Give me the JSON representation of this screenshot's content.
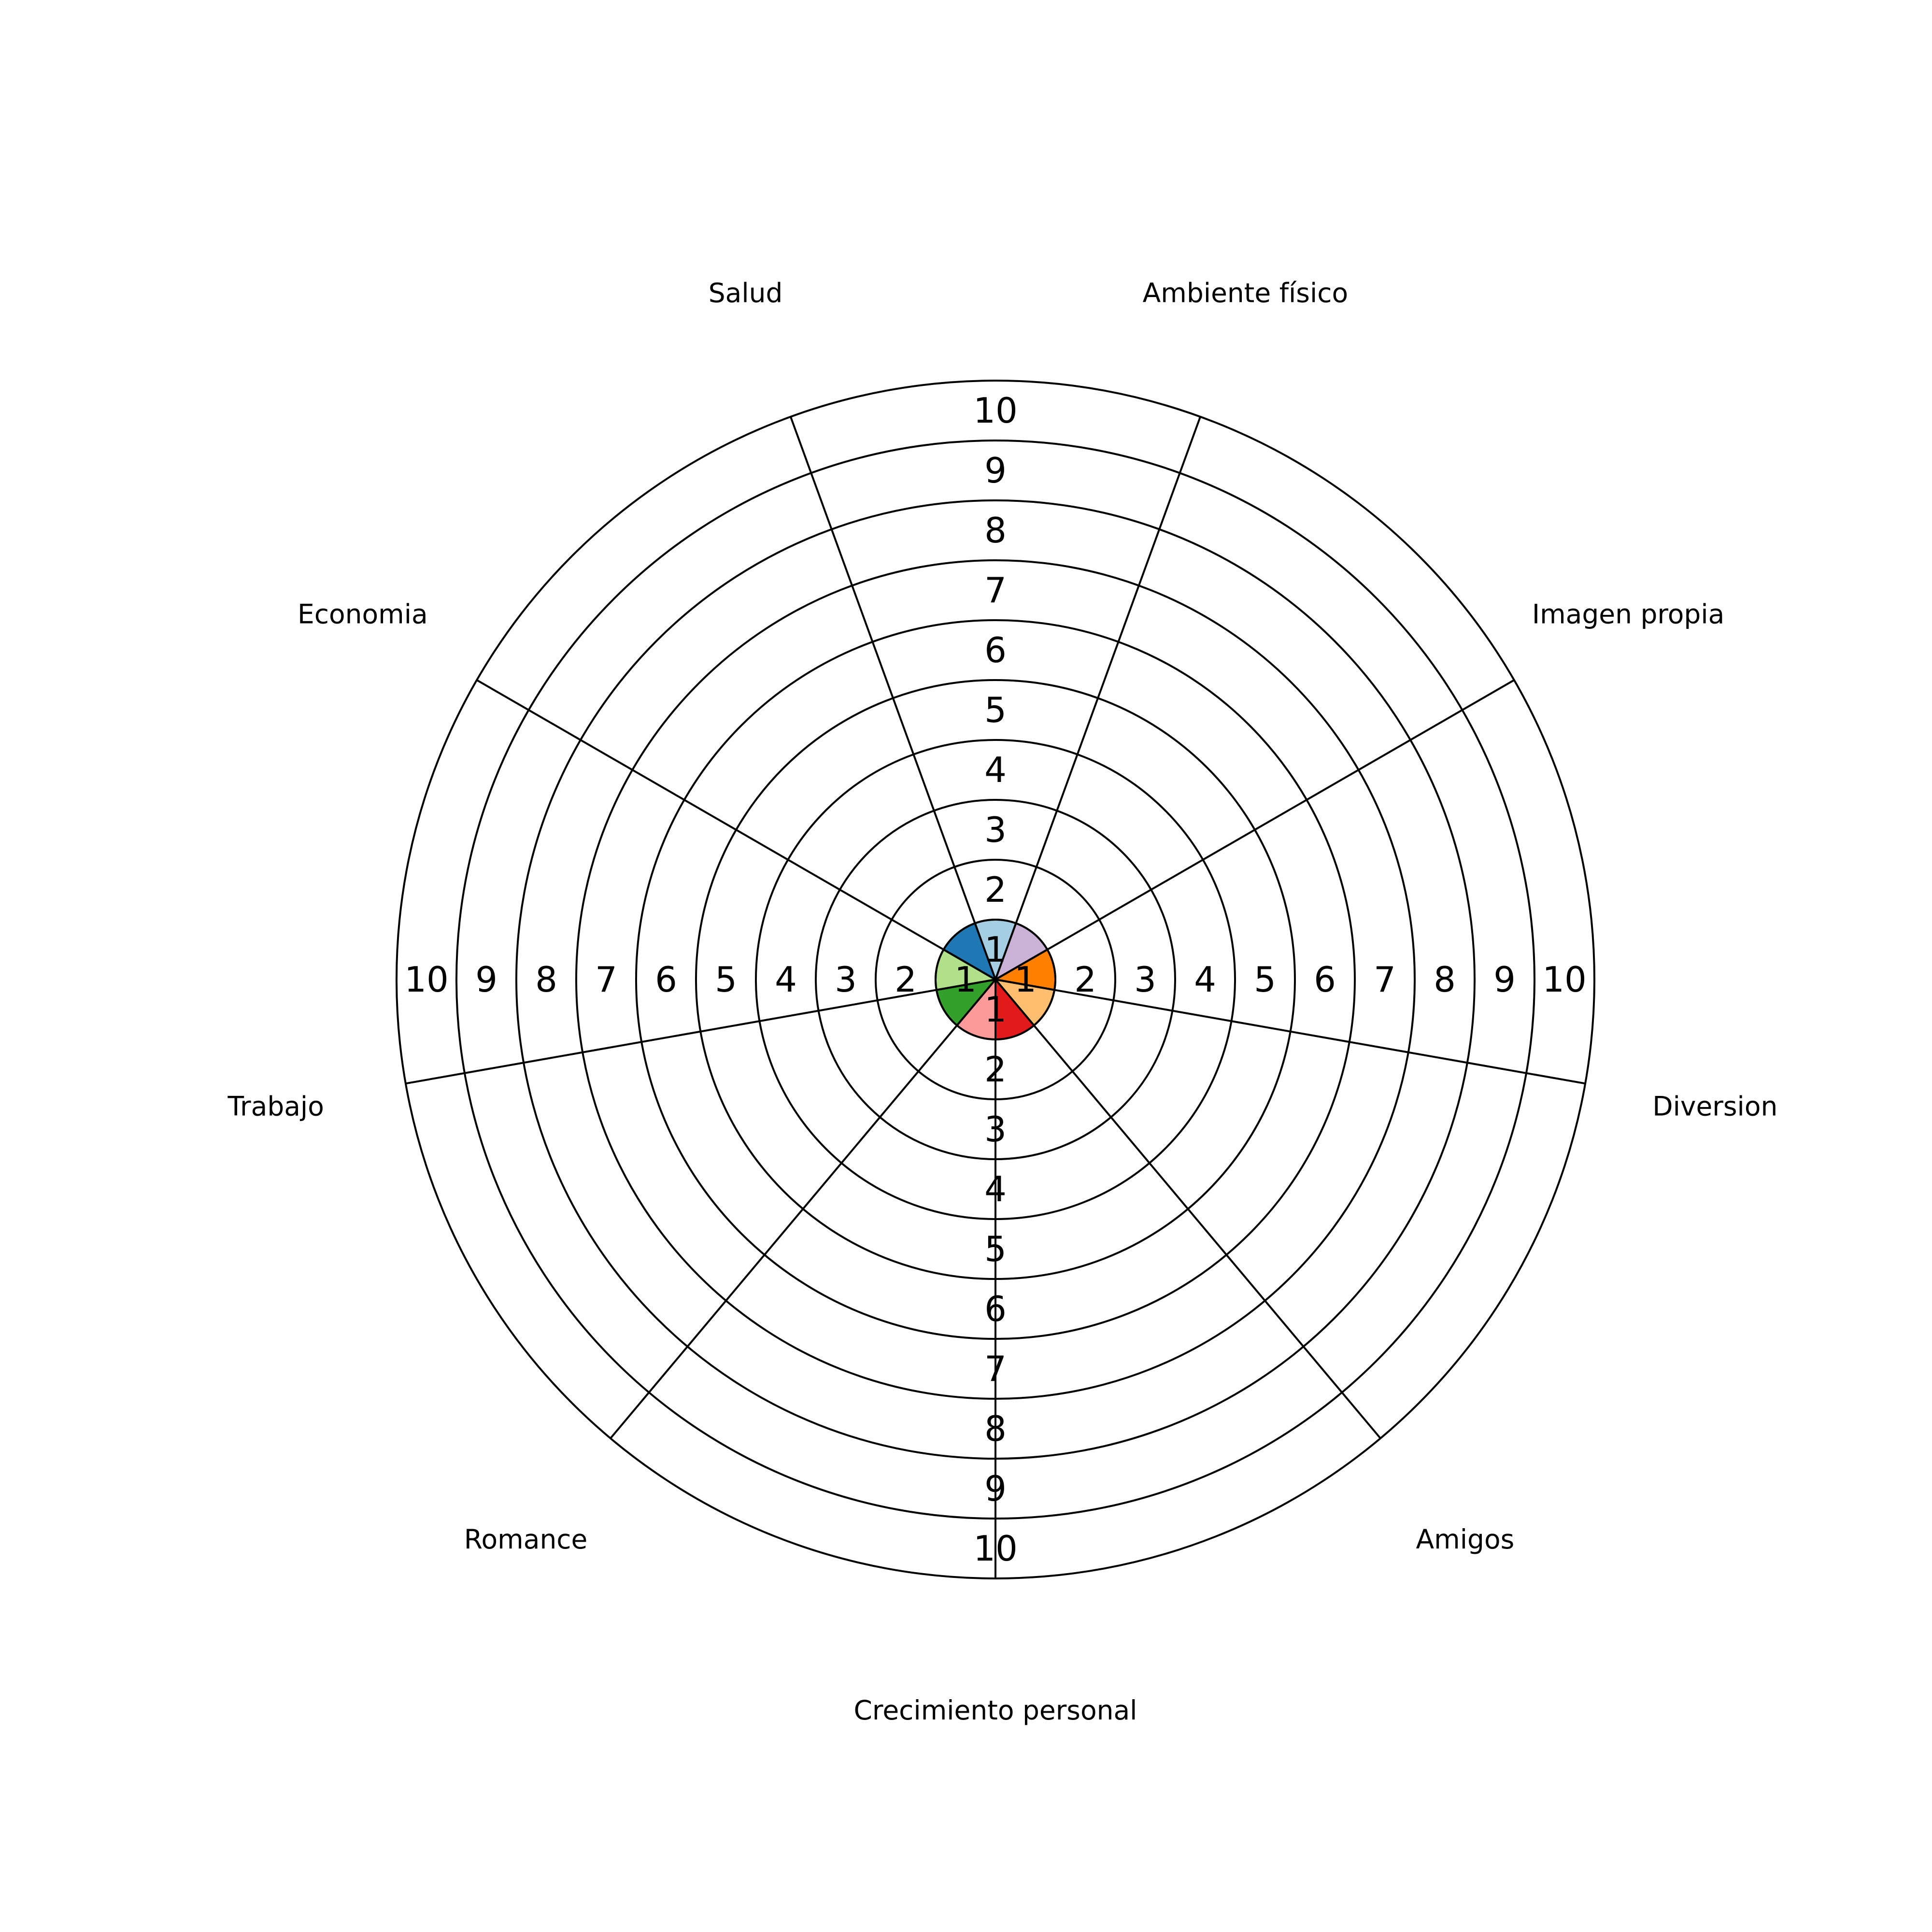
{
  "chart_data": {
    "type": "wheel",
    "title": "",
    "rlim": [
      0,
      10
    ],
    "ring_ticks": [
      1,
      2,
      3,
      4,
      5,
      6,
      7,
      8,
      9,
      10
    ],
    "grid": true,
    "categories": [
      "Salud",
      "Ambiente físico",
      "Imagen propia",
      "Diversion",
      "Amigos",
      "Crecimiento personal",
      "Romance",
      "Trabajo",
      "Economia"
    ],
    "values": [
      1,
      1,
      1,
      1,
      1,
      1,
      1,
      1,
      1
    ],
    "colors": [
      "#a6cee3",
      "#cab2d6",
      "#ff7f00",
      "#fdbf6f",
      "#e31a1c",
      "#fb9a99",
      "#33a02c",
      "#b2df8a",
      "#1f78b4"
    ]
  }
}
